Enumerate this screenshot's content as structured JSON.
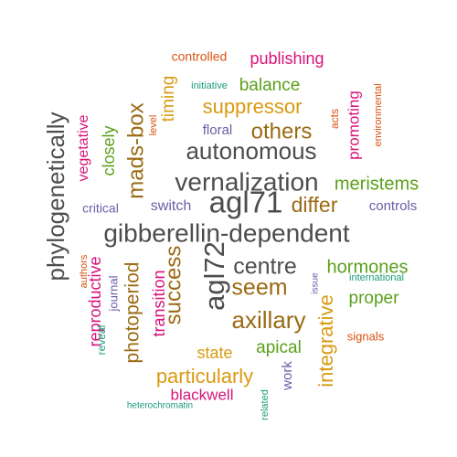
{
  "word_cloud": {
    "colors": {
      "gray": "#4d4d4d",
      "gold": "#d99a13",
      "brown": "#9a6a13",
      "green": "#5aa01c",
      "magenta": "#d8137a",
      "purple": "#6b5ea6",
      "orange": "#d9530f",
      "teal": "#1a9a78"
    },
    "words": [
      {
        "text": "gibberellin-dependent",
        "color": "gray"
      },
      {
        "text": "agl71",
        "color": "gray"
      },
      {
        "text": "agl72",
        "color": "gray"
      },
      {
        "text": "phylogenetically",
        "color": "gray"
      },
      {
        "text": "vernalization",
        "color": "gray"
      },
      {
        "text": "autonomous",
        "color": "gray"
      },
      {
        "text": "centre",
        "color": "gray"
      },
      {
        "text": "mads-box",
        "color": "brown"
      },
      {
        "text": "seem",
        "color": "brown"
      },
      {
        "text": "axillary",
        "color": "brown"
      },
      {
        "text": "success",
        "color": "brown"
      },
      {
        "text": "others",
        "color": "brown"
      },
      {
        "text": "differ",
        "color": "brown"
      },
      {
        "text": "photoperiod",
        "color": "brown"
      },
      {
        "text": "hormones",
        "color": "green"
      },
      {
        "text": "meristems",
        "color": "green"
      },
      {
        "text": "balance",
        "color": "green"
      },
      {
        "text": "closely",
        "color": "green"
      },
      {
        "text": "proper",
        "color": "green"
      },
      {
        "text": "apical",
        "color": "green"
      },
      {
        "text": "suppressor",
        "color": "gold"
      },
      {
        "text": "timing",
        "color": "gold"
      },
      {
        "text": "integrative",
        "color": "gold"
      },
      {
        "text": "state",
        "color": "gold"
      },
      {
        "text": "particularly",
        "color": "gold"
      },
      {
        "text": "controlled",
        "color": "orange"
      },
      {
        "text": "publishing",
        "color": "magenta"
      },
      {
        "text": "vegetative",
        "color": "magenta"
      },
      {
        "text": "reproductive",
        "color": "magenta"
      },
      {
        "text": "promoting",
        "color": "magenta"
      },
      {
        "text": "transition",
        "color": "magenta"
      },
      {
        "text": "blackwell",
        "color": "magenta"
      },
      {
        "text": "floral",
        "color": "purple"
      },
      {
        "text": "switch",
        "color": "purple"
      },
      {
        "text": "critical",
        "color": "purple"
      },
      {
        "text": "controls",
        "color": "purple"
      },
      {
        "text": "journal",
        "color": "purple"
      },
      {
        "text": "work",
        "color": "purple"
      },
      {
        "text": "issue",
        "color": "purple"
      },
      {
        "text": "initiative",
        "color": "teal"
      },
      {
        "text": "reveal",
        "color": "teal"
      },
      {
        "text": "international",
        "color": "teal"
      },
      {
        "text": "related",
        "color": "teal"
      },
      {
        "text": "heterochromatin",
        "color": "teal"
      },
      {
        "text": "level",
        "color": "orange"
      },
      {
        "text": "acts",
        "color": "orange"
      },
      {
        "text": "environmental",
        "color": "orange"
      },
      {
        "text": "authors",
        "color": "orange"
      },
      {
        "text": "signals",
        "color": "orange"
      }
    ]
  }
}
